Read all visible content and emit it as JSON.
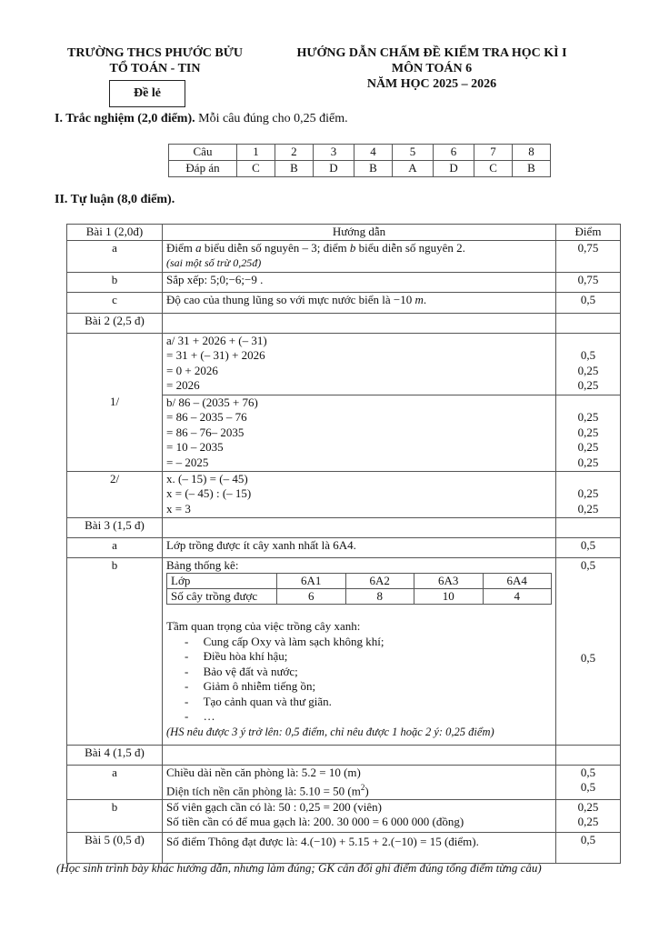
{
  "header": {
    "school": "TRƯỜNG THCS PHƯỚC BỬU",
    "department": "TỔ TOÁN - TIN",
    "exam_code": "Đề lẻ",
    "title": "HƯỚNG DẪN CHẤM ĐỀ KIỂM TRA HỌC KÌ I",
    "subject": "MÔN TOÁN 6",
    "year": "NĂM HỌC 2025 – 2026"
  },
  "part1": {
    "heading": "I. Trắc nghiệm (2,0 điểm).",
    "note": " Mỗi câu đúng cho 0,25 điểm.",
    "row_labels": [
      "Câu",
      "Đáp án"
    ],
    "questions": [
      "1",
      "2",
      "3",
      "4",
      "5",
      "6",
      "7",
      "8"
    ],
    "answers": [
      "C",
      "B",
      "D",
      "B",
      "A",
      "D",
      "C",
      "B"
    ]
  },
  "part2": {
    "heading": "II. Tự luận (8,0 điểm).",
    "col_headers": [
      "Bài 1 (2,0đ)",
      "Hướng dẫn",
      "Điểm"
    ],
    "b1": {
      "a_label": "a",
      "a_text_1": "Điểm ",
      "a_var1": "a",
      "a_text_2": " biểu diễn số nguyên – 3; điểm ",
      "a_var2": "b",
      "a_text_3": " biểu diễn số nguyên 2.",
      "a_note": "(sai một số trừ 0,25đ)",
      "a_score": "0,75",
      "b_label": "b",
      "b_text": "Sắp xếp:  5;0;−6;−9 .",
      "b_score": "0,75",
      "c_label": "c",
      "c_text": "Độ cao của thung lũng so với mực nước biển là −10 ",
      "c_unit": "m",
      "c_end": ".",
      "c_score": "0,5"
    },
    "b2": {
      "label": "Bài 2 (2,5 đ)",
      "p1_label": "1/",
      "a_lines": [
        "a/ 31 + 2026 + (– 31)",
        " = 31 + (– 31) + 2026",
        " = 0 + 2026",
        " = 2026"
      ],
      "a_scores": [
        "",
        "0,5",
        "0,25",
        "0,25"
      ],
      "b_lines": [
        "b/ 86 – (2035 + 76)",
        " = 86 – 2035 – 76",
        " = 86 – 76– 2035",
        " = 10 – 2035",
        " = – 2025"
      ],
      "b_scores": [
        "",
        "0,25",
        "0,25",
        "0,25",
        "0,25"
      ],
      "p2_label": "2/",
      "p2_lines": [
        " x.  (– 15) = (– 45)",
        " x = (– 45) : (– 15)",
        " x = 3"
      ],
      "p2_scores": [
        "",
        "0,25",
        "0,25"
      ]
    },
    "b3": {
      "label": "Bài 3 (1,5 đ)",
      "a_label": "a",
      "a_text": "Lớp trồng được ít cây xanh nhất là 6A4.",
      "a_score": "0,5",
      "b_label": "b",
      "b_intro": "Bảng thống kê:",
      "b_score_top": "0,5",
      "stats_headers": [
        "Lớp",
        "6A1",
        "6A2",
        "6A3",
        "6A4"
      ],
      "stats_values": [
        "Số cây trồng được",
        "6",
        "8",
        "10",
        "4"
      ],
      "importance": "Tầm quan trọng của việc trồng cây xanh:",
      "bullets": [
        "Cung cấp Oxy và làm sạch không khí;",
        "Điều hòa khí hậu;",
        "Bảo vệ đất và nước;",
        "Giảm ô nhiễm tiếng ồn;",
        "Tạo cảnh quan và thư giãn.",
        "…"
      ],
      "note": "(HS nêu được 3 ý trở lên: 0,5 điểm, chỉ nêu được 1 hoặc 2 ý: 0,25 điểm)",
      "b_score_mid": "0,5"
    },
    "b4": {
      "label": "Bài 4 (1,5 đ)",
      "a_label": "a",
      "a_line1": "Chiều dài nền căn phòng là: 5.2 = 10 (m)",
      "a_line2": "Diện tích nền căn phòng là: 5.10 = 50 (m",
      "a_sup": "2",
      "a_line2_end": ")",
      "a_scores": [
        "0,5",
        "0,5"
      ],
      "b_label": "b",
      "b_line1": "Số viên gạch cần có là: 50 : 0,25 = 200 (viên)",
      "b_line2": "Số tiền cần có để mua gạch là: 200. 30 000 = 6 000 000 (đồng)",
      "b_scores": [
        "0,25",
        "0,25"
      ]
    },
    "b5": {
      "label": "Bài 5 (0,5 đ)",
      "text": "Số điểm Thông đạt được là: 4.(−10) + 5.15 + 2.(−10) = 15  (điểm).",
      "score": "0,5"
    }
  },
  "footer": "(Học sinh trình bày khác hướng dẫn, nhưng làm đúng; GK cân đối ghi điểm đúng tổng điểm từng câu)"
}
